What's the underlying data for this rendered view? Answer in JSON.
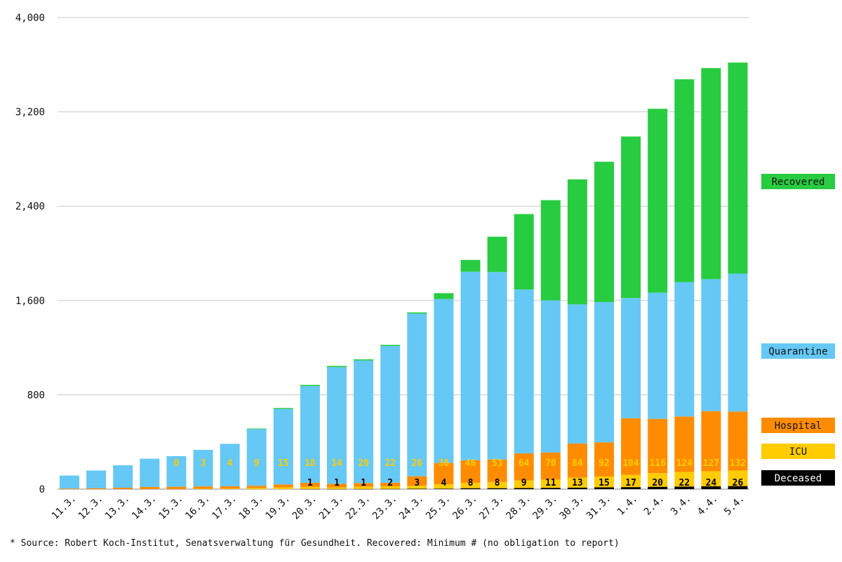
{
  "chart_data": {
    "type": "bar",
    "stacked": true,
    "categories": [
      "11.3.",
      "12.3.",
      "13.3.",
      "14.3.",
      "15.3.",
      "16.3.",
      "17.3.",
      "18.3.",
      "19.3.",
      "20.3.",
      "21.3.",
      "22.3.",
      "23.3.",
      "24.3.",
      "25.3.",
      "26.3.",
      "27.3.",
      "28.3.",
      "29.3.",
      "30.3.",
      "31.3.",
      "1.4.",
      "2.4.",
      "3.4.",
      "4.4.",
      "5.4."
    ],
    "ylim": [
      0,
      4000
    ],
    "yticks": [
      0,
      800,
      1600,
      2400,
      3200,
      4000
    ],
    "ytick_labels": [
      "0",
      "800",
      "1,600",
      "2,400",
      "3,200",
      "4,000"
    ],
    "grid": true,
    "legend_placement": "right",
    "series": [
      {
        "name": "Deceased",
        "color": "#000000",
        "label_color": "#ffffff",
        "values": [
          0,
          0,
          0,
          0,
          0,
          0,
          0,
          0,
          0,
          1,
          1,
          1,
          2,
          3,
          4,
          8,
          8,
          9,
          11,
          13,
          15,
          17,
          20,
          22,
          24,
          26
        ]
      },
      {
        "name": "ICU",
        "color": "#ffcc00",
        "label_color": "#ffcc00",
        "values": [
          0,
          0,
          0,
          0,
          0,
          3,
          4,
          9,
          15,
          18,
          14,
          20,
          22,
          26,
          38,
          46,
          53,
          64,
          70,
          84,
          92,
          104,
          116,
          124,
          127,
          132
        ]
      },
      {
        "name": "Hospital",
        "color": "#ff8c00",
        "label_color": "#ff8c00",
        "values": [
          5,
          8,
          12,
          18,
          20,
          20,
          20,
          20,
          25,
          35,
          30,
          30,
          30,
          80,
          180,
          190,
          190,
          230,
          230,
          290,
          290,
          480,
          460,
          470,
          510,
          500
        ]
      },
      {
        "name": "Quarantine",
        "color": "#66c8f5",
        "label_color": "#66c8f5",
        "values": [
          110,
          150,
          190,
          240,
          260,
          310,
          360,
          480,
          640,
          820,
          990,
          1040,
          1160,
          1380,
          1390,
          1600,
          1590,
          1390,
          1290,
          1180,
          1190,
          1020,
          1070,
          1140,
          1120,
          1170
        ]
      },
      {
        "name": "Recovered",
        "color": "#28cc41",
        "label_color": "#28cc41",
        "values": [
          0,
          0,
          0,
          0,
          0,
          0,
          0,
          5,
          8,
          10,
          10,
          10,
          10,
          10,
          50,
          100,
          300,
          640,
          850,
          1060,
          1190,
          1370,
          1560,
          1720,
          1790,
          1790
        ]
      }
    ],
    "bar_labels": {
      "icu": [
        "",
        "",
        "",
        "",
        "0",
        "3",
        "4",
        "9",
        "15",
        "18",
        "14",
        "20",
        "22",
        "26",
        "38",
        "46",
        "53",
        "64",
        "70",
        "84",
        "92",
        "104",
        "116",
        "124",
        "127",
        "132"
      ],
      "deceased": [
        "",
        "",
        "",
        "",
        "",
        "",
        "",
        "",
        "",
        "1",
        "1",
        "1",
        "2",
        "3",
        "4",
        "8",
        "8",
        "9",
        "11",
        "13",
        "15",
        "17",
        "20",
        "22",
        "24",
        "26"
      ]
    },
    "legend": [
      "Recovered",
      "Quarantine",
      "Hospital",
      "ICU",
      "Deceased"
    ]
  },
  "footnote": "* Source: Robert Koch-Institut, Senatsverwaltung für Gesundheit. Recovered: Minimum # (no obligation to report)"
}
